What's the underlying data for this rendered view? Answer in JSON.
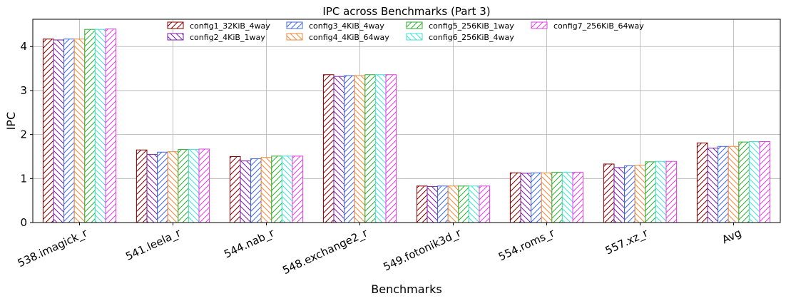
{
  "chart_data": {
    "type": "bar",
    "title": "IPC across Benchmarks (Part 3)",
    "xlabel": "Benchmarks",
    "ylabel": "IPC",
    "ylim": [
      0,
      4.62
    ],
    "yticks": [
      0,
      1,
      2,
      3,
      4
    ],
    "grid": true,
    "legend_position": "top-center",
    "legend_columns": 4,
    "categories": [
      "538.imagick_r",
      "541.leela_r",
      "544.nab_r",
      "548.exchange2_r",
      "549.fotonik3d_r",
      "554.roms_r",
      "557.xz_r",
      "Avg"
    ],
    "series": [
      {
        "name": "config1_32KiB_4way",
        "color": "#800000",
        "hatch": "fwd",
        "values": [
          4.17,
          1.65,
          1.5,
          3.36,
          0.83,
          1.13,
          1.33,
          1.81
        ]
      },
      {
        "name": "config2_4KiB_1way",
        "color": "#7a1fa2",
        "hatch": "back",
        "values": [
          4.15,
          1.55,
          1.4,
          3.32,
          0.82,
          1.12,
          1.25,
          1.69
        ]
      },
      {
        "name": "config3_4KiB_4way",
        "color": "#4169e1",
        "hatch": "fwd",
        "values": [
          4.17,
          1.6,
          1.45,
          3.34,
          0.83,
          1.13,
          1.29,
          1.73
        ]
      },
      {
        "name": "config4_4KiB_64way",
        "color": "#ee8a3a",
        "hatch": "back",
        "values": [
          4.17,
          1.61,
          1.48,
          3.34,
          0.83,
          1.13,
          1.3,
          1.73
        ]
      },
      {
        "name": "config5_256KiB_1way",
        "color": "#2eab2e",
        "hatch": "fwd",
        "values": [
          4.39,
          1.66,
          1.51,
          3.36,
          0.83,
          1.14,
          1.38,
          1.83
        ]
      },
      {
        "name": "config6_256KiB_4way",
        "color": "#40e0d0",
        "hatch": "back",
        "values": [
          4.39,
          1.66,
          1.51,
          3.36,
          0.83,
          1.14,
          1.39,
          1.84
        ]
      },
      {
        "name": "config7_256KiB_64way",
        "color": "#e040e0",
        "hatch": "fwd",
        "values": [
          4.4,
          1.67,
          1.51,
          3.36,
          0.83,
          1.14,
          1.39,
          1.84
        ]
      }
    ]
  }
}
